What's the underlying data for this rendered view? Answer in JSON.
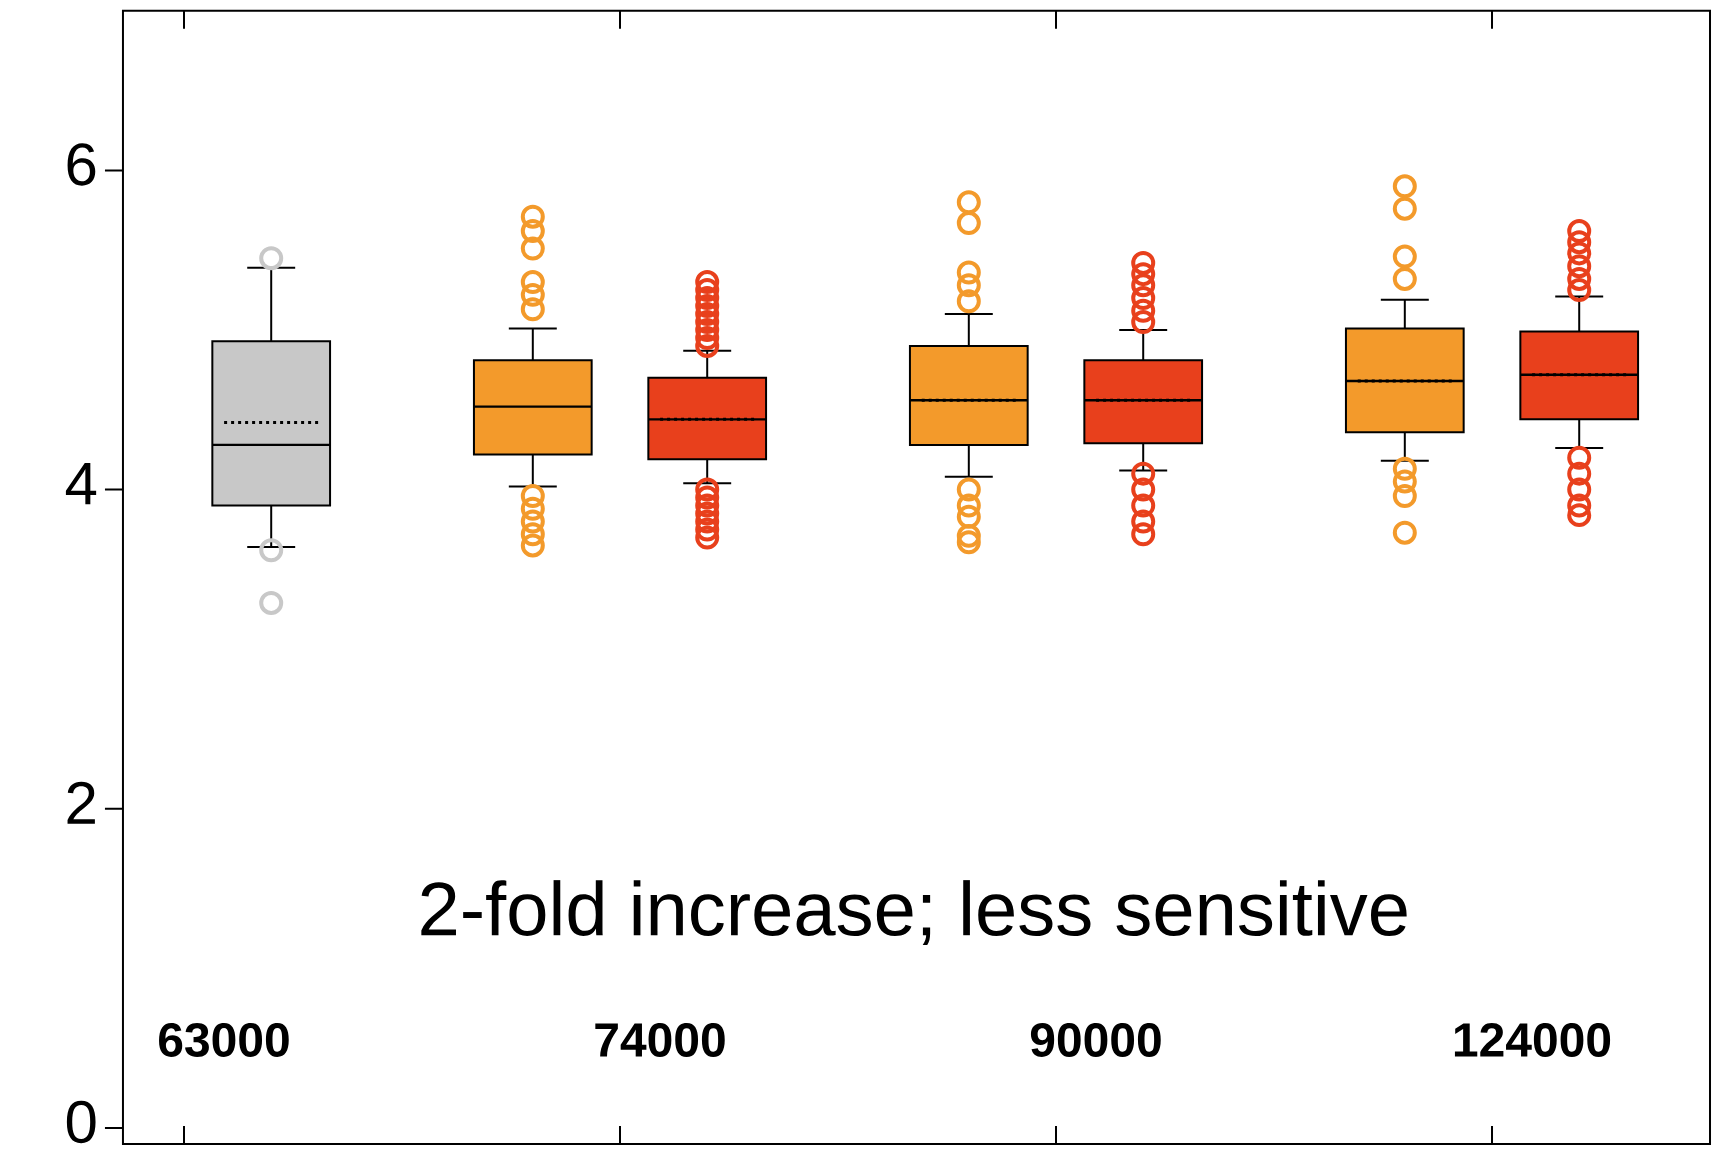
{
  "chart_data": {
    "type": "box",
    "categories": [
      "63000",
      "74000",
      "90000",
      "124000"
    ],
    "ylim": [
      -0.1,
      7
    ],
    "yticks": [
      0,
      2,
      4,
      6
    ],
    "grid": false,
    "series": [
      {
        "color": "#f39a2b",
        "boxes": [
          null,
          {
            "low": 4.02,
            "q1": 4.22,
            "median": 4.52,
            "q3": 4.81,
            "high": 5.01,
            "outliers": [
              5.71,
              5.62,
              5.51,
              5.3,
              5.22,
              5.13,
              3.96,
              3.88,
              3.8,
              3.72,
              3.65
            ]
          },
          {
            "low": 4.08,
            "q1": 4.28,
            "median": 4.56,
            "q3": 4.9,
            "high": 5.1,
            "mean": 4.56,
            "outliers": [
              5.8,
              5.67,
              5.36,
              5.28,
              5.18,
              4.0,
              3.9,
              3.83,
              3.71,
              3.67
            ]
          },
          {
            "low": 4.18,
            "q1": 4.36,
            "median": 4.68,
            "q3": 5.01,
            "high": 5.19,
            "mean": 4.68,
            "outliers": [
              5.9,
              5.76,
              5.46,
              5.32,
              4.13,
              4.05,
              3.96,
              3.73
            ]
          }
        ]
      },
      {
        "colors": [
          "#c8c8c8",
          "#e8401c",
          "#e8401c",
          "#e8401c"
        ],
        "boxes": [
          {
            "low": 3.64,
            "q1": 3.9,
            "median": 4.28,
            "q3": 4.93,
            "high": 5.39,
            "mean": 4.42,
            "outliers": [
              5.45,
              3.62,
              3.29
            ]
          },
          {
            "low": 4.04,
            "q1": 4.19,
            "median": 4.44,
            "q3": 4.7,
            "high": 4.87,
            "mean": 4.44,
            "outliers": [
              5.3,
              5.25,
              5.2,
              5.15,
              5.1,
              5.05,
              5.0,
              4.95,
              4.9,
              4.0,
              3.95,
              3.9,
              3.85,
              3.8,
              3.75,
              3.7
            ]
          },
          {
            "low": 4.12,
            "q1": 4.29,
            "median": 4.56,
            "q3": 4.81,
            "high": 5.0,
            "mean": 4.56,
            "outliers": [
              5.42,
              5.35,
              5.28,
              5.2,
              5.12,
              5.05,
              4.1,
              4.0,
              3.9,
              3.8,
              3.72
            ]
          },
          {
            "low": 4.26,
            "q1": 4.44,
            "median": 4.72,
            "q3": 4.99,
            "high": 5.21,
            "mean": 4.72,
            "outliers": [
              5.62,
              5.55,
              5.48,
              5.4,
              5.32,
              5.25,
              4.2,
              4.1,
              4.0,
              3.9,
              3.84
            ]
          }
        ]
      }
    ],
    "annotations": [
      "2-fold increase; less sensitive"
    ]
  }
}
